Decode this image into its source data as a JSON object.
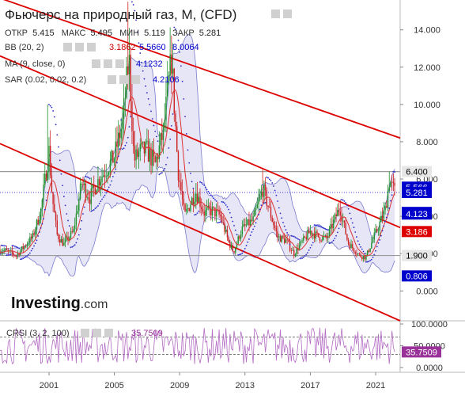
{
  "header": {
    "title": "Фьючерс на природный газ, M, (CFD)",
    "ohlc": [
      {
        "label": "ОТКР",
        "value": "5.415"
      },
      {
        "label": "МАКС",
        "value": "5.495"
      },
      {
        "label": "МИН",
        "value": "5.119"
      },
      {
        "label": "ЗАКР",
        "value": "5.281"
      }
    ]
  },
  "indicators": {
    "bb": {
      "label": "BB (20, 2)",
      "values": [
        "3.1862",
        "5.5660",
        "8.0064"
      ],
      "colors": [
        "#cc0000",
        "#0000cc",
        "#0000cc"
      ]
    },
    "ma": {
      "label": "MA (9, close, 0)",
      "value": "4.1232",
      "color": "#0000cc"
    },
    "sar": {
      "label": "SAR (0.02, 0.02, 0.2)",
      "value": "4.2106",
      "color": "#0000cc"
    },
    "crsi": {
      "label": "CRSI (3, 2, 100)",
      "value": "35.7509",
      "color": "#993399"
    }
  },
  "logo": {
    "brand": "Investing",
    "suffix": ".com"
  },
  "chart_data": {
    "type": "candlestick",
    "x_range": [
      1998.0,
      2022.5
    ],
    "x_ticks": [
      "2001",
      "2005",
      "2009",
      "2013",
      "2017",
      "2021"
    ],
    "ylim": [
      -1.6,
      15.6
    ],
    "y_ticks": [
      "0.000",
      "2.000",
      "4.000",
      "6.000",
      "8.000",
      "10.000",
      "12.000",
      "14.000"
    ],
    "price_series": [
      [
        1998.0,
        2.2
      ],
      [
        1998.5,
        2.1
      ],
      [
        1999.0,
        1.9
      ],
      [
        1999.5,
        2.4
      ],
      [
        2000.0,
        2.9
      ],
      [
        2000.5,
        4.3
      ],
      [
        2001.0,
        7.5
      ],
      [
        2001.2,
        5.0
      ],
      [
        2001.5,
        3.0
      ],
      [
        2001.9,
        2.5
      ],
      [
        2002.5,
        3.2
      ],
      [
        2003.0,
        5.8
      ],
      [
        2003.5,
        5.0
      ],
      [
        2004.0,
        5.9
      ],
      [
        2004.5,
        6.5
      ],
      [
        2005.0,
        7.2
      ],
      [
        2005.5,
        9.0
      ],
      [
        2005.9,
        12.5
      ],
      [
        2006.2,
        7.0
      ],
      [
        2006.6,
        7.5
      ],
      [
        2007.0,
        7.5
      ],
      [
        2007.5,
        6.8
      ],
      [
        2008.0,
        8.5
      ],
      [
        2008.5,
        12.5
      ],
      [
        2008.9,
        6.5
      ],
      [
        2009.3,
        4.0
      ],
      [
        2009.7,
        4.8
      ],
      [
        2010.0,
        5.3
      ],
      [
        2010.5,
        4.2
      ],
      [
        2011.0,
        4.3
      ],
      [
        2011.5,
        4.0
      ],
      [
        2012.0,
        2.6
      ],
      [
        2012.3,
        2.1
      ],
      [
        2012.8,
        3.3
      ],
      [
        2013.5,
        3.8
      ],
      [
        2014.1,
        5.5
      ],
      [
        2014.6,
        4.0
      ],
      [
        2015.0,
        2.9
      ],
      [
        2015.5,
        2.7
      ],
      [
        2016.0,
        2.0
      ],
      [
        2016.4,
        2.5
      ],
      [
        2017.0,
        3.2
      ],
      [
        2017.5,
        2.9
      ],
      [
        2018.0,
        2.8
      ],
      [
        2018.8,
        4.5
      ],
      [
        2019.3,
        2.6
      ],
      [
        2020.0,
        1.9
      ],
      [
        2020.4,
        1.8
      ],
      [
        2020.8,
        2.7
      ],
      [
        2021.2,
        3.5
      ],
      [
        2021.6,
        4.4
      ],
      [
        2021.85,
        6.0
      ],
      [
        2022.0,
        5.6
      ],
      [
        2022.2,
        5.3
      ]
    ],
    "price_labels": [
      {
        "value": 6.4,
        "text": "6.400",
        "bg": "#e6e6e6",
        "fg": "#000000"
      },
      {
        "value": 5.566,
        "text": "5.566",
        "bg": "#0000cc",
        "fg": "#ffffff"
      },
      {
        "value": 5.281,
        "text": "5.281",
        "bg": "#0000cc",
        "fg": "#ffffff"
      },
      {
        "value": 4.211,
        "text": "4.211",
        "bg": "#0000cc",
        "fg": "#ffffff"
      },
      {
        "value": 4.123,
        "text": "4.123",
        "bg": "#0000cc",
        "fg": "#ffffff"
      },
      {
        "value": 3.186,
        "text": "3.186",
        "bg": "#dd0000",
        "fg": "#ffffff"
      },
      {
        "value": 1.9,
        "text": "1.900",
        "bg": "#e6e6e6",
        "fg": "#000000"
      },
      {
        "value": 0.806,
        "text": "0.806",
        "bg": "#0000cc",
        "fg": "#ffffff"
      }
    ],
    "horizontal_levels": [
      6.4,
      1.9
    ],
    "trend_channel": [
      {
        "x1": 1998.0,
        "y1": 15.7,
        "x2": 2022.5,
        "y2": 8.2
      },
      {
        "x1": 1998.0,
        "y1": 12.6,
        "x2": 2022.5,
        "y2": 3.4
      },
      {
        "x1": 1998.0,
        "y1": 7.9,
        "x2": 2022.5,
        "y2": -1.6
      }
    ],
    "indicator_panel": {
      "ylim": [
        0,
        100
      ],
      "y_ticks": [
        "100.0000",
        "50.0000",
        "0.0000"
      ],
      "bands": [
        70,
        30
      ],
      "current": 35.7509,
      "current_label": "35.7509"
    },
    "colors": {
      "up": "#1f8f2b",
      "down": "#cc2222",
      "ma": "#dd3333",
      "bb_fill": "#e3e3f5",
      "bb_line": "#7a7ad0",
      "sar": "#2a2acc",
      "channel": "#dd0000",
      "crsi": "#b36bc3"
    }
  }
}
